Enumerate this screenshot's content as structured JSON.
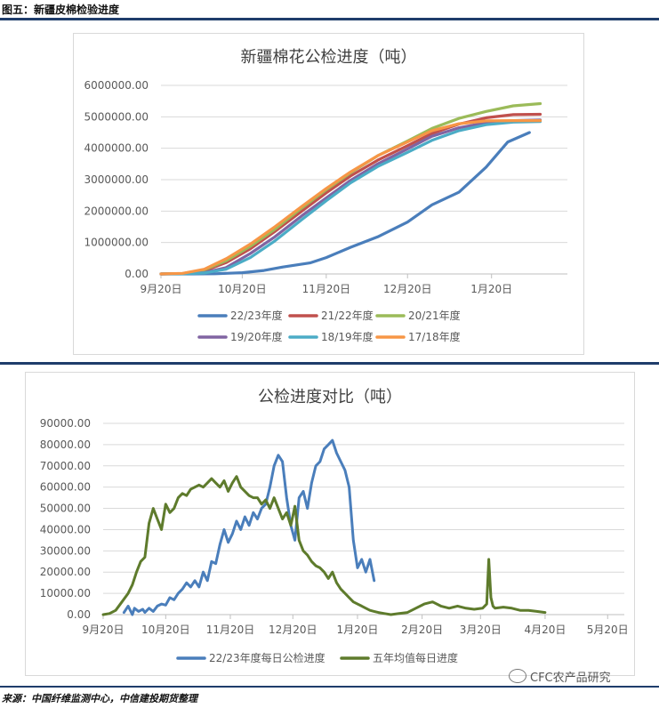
{
  "figure_title": "图五：新疆皮棉检验进度",
  "source_note": "来源：中国纤维监测中心，中信建投期货整理",
  "watermark": "CFC农产品研究",
  "chart_data": [
    {
      "type": "line",
      "title": "新疆棉花公检进度（吨）",
      "ylim": [
        0,
        6000000
      ],
      "yticks": [
        "0.00",
        "1000000.00",
        "2000000.00",
        "3000000.00",
        "4000000.00",
        "5000000.00",
        "6000000.00"
      ],
      "xticks": [
        "9月20日",
        "10月20日",
        "11月20日",
        "12月20日",
        "1月20日"
      ],
      "x_days": [
        0,
        30,
        61,
        91,
        122
      ],
      "legend_position": "bottom",
      "series": [
        {
          "name": "22/23年度",
          "color": "#4a7ebb",
          "x": [
            0,
            10,
            20,
            30,
            38,
            45,
            55,
            61,
            70,
            80,
            91,
            100,
            110,
            120,
            128,
            136
          ],
          "values": [
            0,
            0,
            5000,
            40000,
            110000,
            220000,
            350000,
            520000,
            850000,
            1180000,
            1650000,
            2200000,
            2600000,
            3400000,
            4200000,
            4500000
          ]
        },
        {
          "name": "21/22年度",
          "color": "#c0504d",
          "x": [
            0,
            8,
            16,
            24,
            33,
            42,
            52,
            61,
            70,
            80,
            91,
            100,
            110,
            120,
            130,
            140
          ],
          "values": [
            0,
            10000,
            100000,
            360000,
            800000,
            1350000,
            2000000,
            2580000,
            3120000,
            3620000,
            4080000,
            4470000,
            4770000,
            4970000,
            5070000,
            5080000
          ]
        },
        {
          "name": "20/21年度",
          "color": "#9bbb59",
          "x": [
            0,
            8,
            16,
            24,
            33,
            42,
            52,
            61,
            70,
            80,
            91,
            100,
            110,
            120,
            130,
            140
          ],
          "values": [
            0,
            15000,
            130000,
            420000,
            880000,
            1420000,
            2100000,
            2680000,
            3220000,
            3760000,
            4230000,
            4630000,
            4950000,
            5170000,
            5350000,
            5420000
          ]
        },
        {
          "name": "19/20年度",
          "color": "#8064a2",
          "x": [
            0,
            8,
            16,
            24,
            33,
            42,
            52,
            61,
            70,
            80,
            91,
            100,
            110,
            120,
            130,
            140
          ],
          "values": [
            0,
            5000,
            40000,
            200000,
            650000,
            1180000,
            1850000,
            2420000,
            2980000,
            3500000,
            3980000,
            4380000,
            4650000,
            4810000,
            4880000,
            4900000
          ]
        },
        {
          "name": "18/19年度",
          "color": "#4bacc6",
          "x": [
            0,
            8,
            16,
            24,
            33,
            42,
            52,
            61,
            70,
            80,
            91,
            100,
            110,
            120,
            130,
            140
          ],
          "values": [
            0,
            3000,
            30000,
            150000,
            520000,
            1050000,
            1730000,
            2330000,
            2900000,
            3420000,
            3870000,
            4250000,
            4560000,
            4750000,
            4830000,
            4850000
          ]
        },
        {
          "name": "17/18年度",
          "color": "#f79646",
          "x": [
            0,
            8,
            16,
            24,
            33,
            42,
            52,
            61,
            70,
            80,
            91,
            100,
            110,
            120,
            130,
            140
          ],
          "values": [
            0,
            20000,
            150000,
            480000,
            950000,
            1500000,
            2150000,
            2720000,
            3250000,
            3760000,
            4200000,
            4560000,
            4780000,
            4870000,
            4880000,
            4880000
          ]
        }
      ]
    },
    {
      "type": "line",
      "title": "公检进度对比（吨）",
      "ylim": [
        0,
        90000
      ],
      "yticks": [
        "0.00",
        "10000.00",
        "20000.00",
        "30000.00",
        "40000.00",
        "50000.00",
        "60000.00",
        "70000.00",
        "80000.00",
        "90000.00"
      ],
      "xticks": [
        "9月20日",
        "10月20日",
        "11月20日",
        "12月20日",
        "1月20日",
        "2月20日",
        "3月20日",
        "4月20日",
        "5月20日"
      ],
      "x_days": [
        0,
        30,
        61,
        91,
        122,
        153,
        181,
        212,
        242
      ],
      "legend_position": "bottom",
      "series": [
        {
          "name": "22/23年度每日公检进度",
          "color": "#4a7ebb",
          "x": [
            10,
            12,
            14,
            15,
            17,
            19,
            20,
            22,
            24,
            26,
            28,
            30,
            32,
            34,
            36,
            38,
            40,
            42,
            44,
            46,
            48,
            50,
            52,
            54,
            56,
            58,
            60,
            62,
            64,
            66,
            68,
            70,
            72,
            74,
            76,
            78,
            80,
            82,
            84,
            86,
            88,
            90,
            92,
            94,
            96,
            98,
            100,
            102,
            104,
            106,
            108,
            110,
            112,
            114,
            116,
            118,
            120,
            122,
            124,
            126,
            128,
            130
          ],
          "values": [
            1000,
            4000,
            0,
            3000,
            1500,
            2500,
            1000,
            3000,
            1500,
            4000,
            5000,
            4500,
            8000,
            7000,
            10000,
            12000,
            15000,
            13000,
            16000,
            13000,
            20000,
            16000,
            25000,
            24000,
            33000,
            40000,
            34000,
            38000,
            44000,
            40000,
            46000,
            42000,
            48000,
            45000,
            50000,
            52000,
            60000,
            70000,
            75000,
            72000,
            55000,
            42000,
            35000,
            55000,
            58000,
            50000,
            62000,
            70000,
            72000,
            78000,
            80000,
            82000,
            76000,
            72000,
            68000,
            60000,
            35000,
            22000,
            26000,
            20000,
            26000,
            16000
          ]
        },
        {
          "name": "五年均值每日进度",
          "color": "#5e7b2c",
          "x": [
            0,
            3,
            6,
            9,
            12,
            14,
            16,
            18,
            20,
            22,
            24,
            26,
            28,
            30,
            32,
            34,
            36,
            38,
            40,
            42,
            44,
            46,
            48,
            50,
            52,
            54,
            56,
            58,
            60,
            62,
            64,
            66,
            68,
            70,
            72,
            74,
            76,
            78,
            80,
            82,
            84,
            86,
            88,
            90,
            92,
            94,
            96,
            98,
            100,
            102,
            104,
            106,
            108,
            110,
            112,
            114,
            116,
            118,
            120,
            122,
            124,
            126,
            128,
            130,
            132,
            135,
            138,
            142,
            146,
            150,
            154,
            158,
            162,
            166,
            170,
            174,
            178,
            182,
            184,
            185,
            186,
            187,
            188,
            192,
            196,
            200,
            204,
            208,
            212
          ],
          "values": [
            0,
            500,
            2000,
            6000,
            10000,
            14000,
            20000,
            25000,
            27000,
            43000,
            50000,
            45000,
            40000,
            52000,
            48000,
            50000,
            55000,
            57000,
            56000,
            59000,
            60000,
            61000,
            60000,
            62000,
            64000,
            62000,
            60000,
            63000,
            58000,
            62000,
            65000,
            60000,
            58000,
            56000,
            55000,
            55000,
            52000,
            54000,
            50000,
            55000,
            50000,
            45000,
            48000,
            42000,
            51000,
            35000,
            30000,
            28000,
            25000,
            23000,
            22000,
            20000,
            17000,
            20000,
            15000,
            12000,
            10000,
            8000,
            6000,
            5000,
            4000,
            3000,
            2000,
            1500,
            1000,
            500,
            0,
            500,
            1000,
            3000,
            5000,
            6000,
            4000,
            3000,
            4000,
            3000,
            2500,
            3000,
            5000,
            26000,
            8000,
            4000,
            3000,
            3500,
            3000,
            2000,
            2000,
            1500,
            1000
          ]
        }
      ]
    }
  ]
}
